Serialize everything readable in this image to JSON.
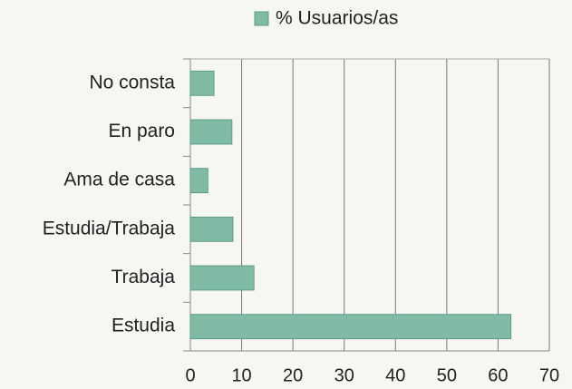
{
  "chart_data": {
    "type": "bar",
    "orientation": "horizontal",
    "categories": [
      "No consta",
      "En paro",
      "Ama de casa",
      "Estudia/Trabaja",
      "Trabaja",
      "Estudia"
    ],
    "series": [
      {
        "name": "% Usuarios/as",
        "color": "#80bba6",
        "values": [
          4.6,
          8.1,
          3.4,
          8.3,
          12.4,
          62.5
        ]
      }
    ],
    "xlim": [
      0,
      70
    ],
    "xticks": [
      0,
      10,
      20,
      30,
      40,
      50,
      60,
      70
    ],
    "grid": true,
    "legend": "top"
  }
}
